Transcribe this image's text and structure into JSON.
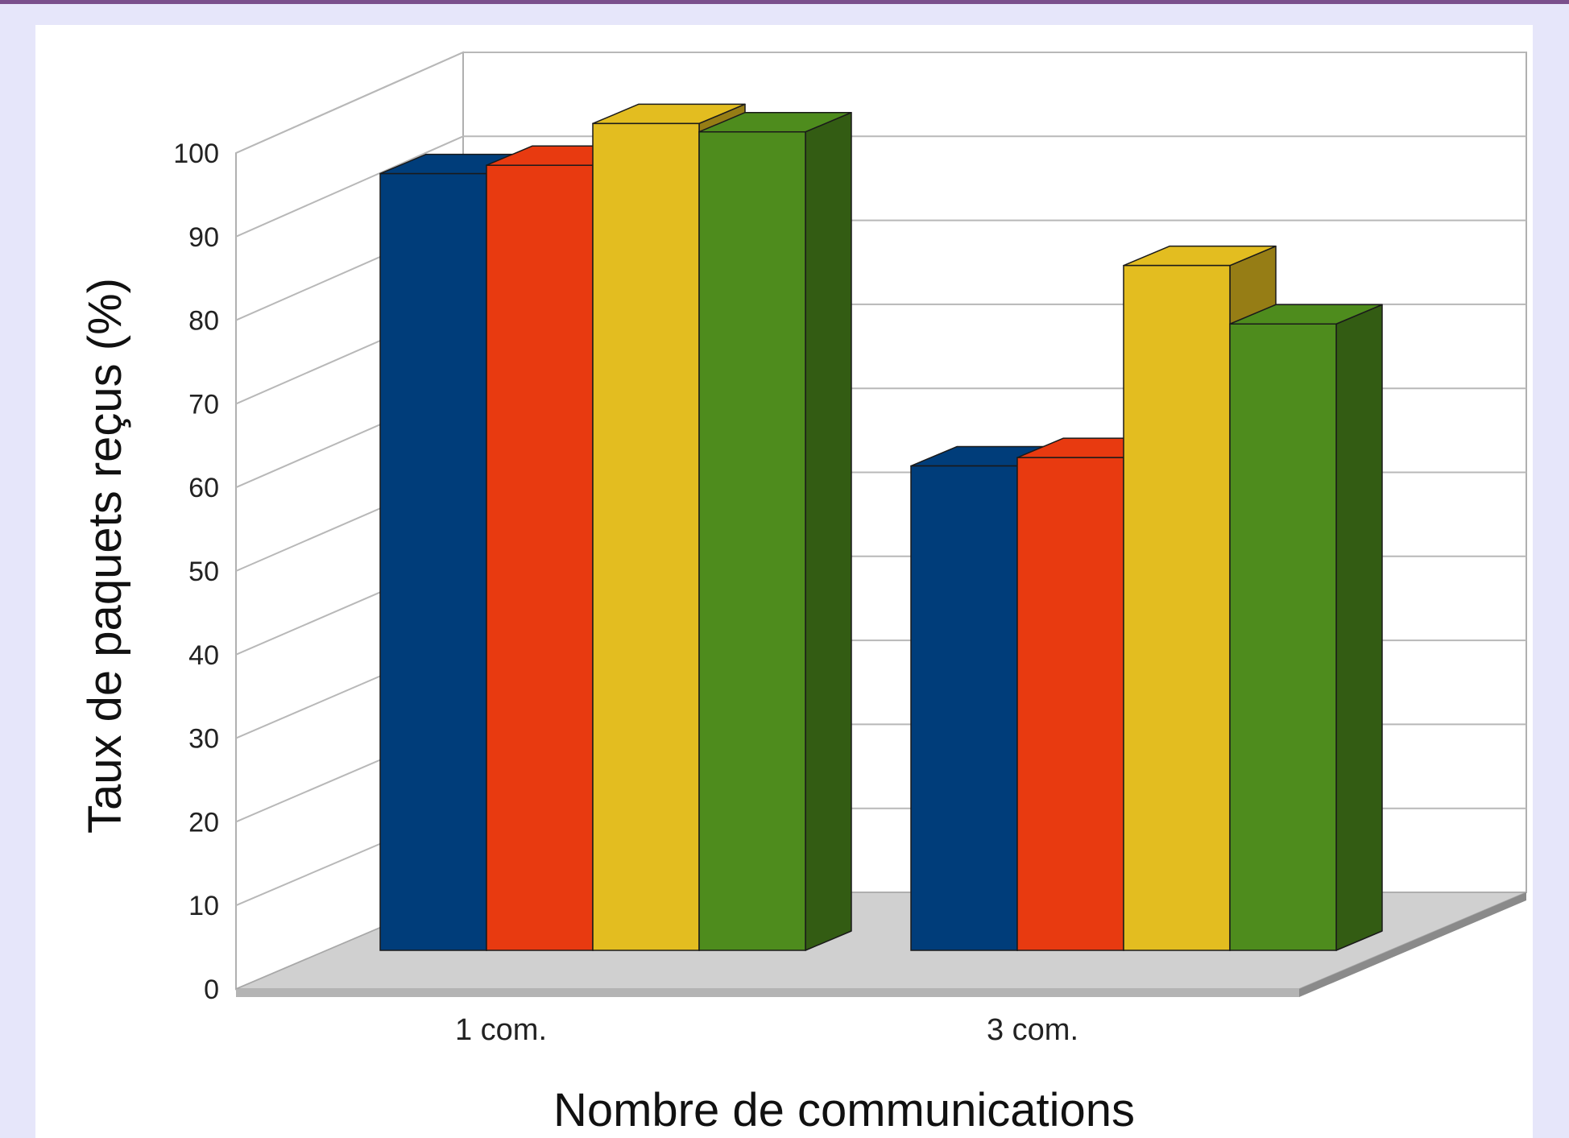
{
  "chart_data": {
    "type": "bar",
    "style": "3d-clustered",
    "title": "",
    "xlabel": "Nombre de communications",
    "ylabel": "Taux de paquets reçus (%)",
    "ylim": [
      0,
      100
    ],
    "yticks": [
      0,
      10,
      20,
      30,
      40,
      50,
      60,
      70,
      80,
      90,
      100
    ],
    "grid": true,
    "legend": "none",
    "categories": [
      "1 com.",
      "3 com."
    ],
    "series": [
      {
        "color": "#003d7a",
        "values": [
          93,
          58
        ]
      },
      {
        "color": "#e83a10",
        "values": [
          94,
          59
        ]
      },
      {
        "color": "#e3bd20",
        "values": [
          99,
          82
        ]
      },
      {
        "color": "#4e8c1d",
        "values": [
          98,
          75
        ]
      }
    ]
  }
}
